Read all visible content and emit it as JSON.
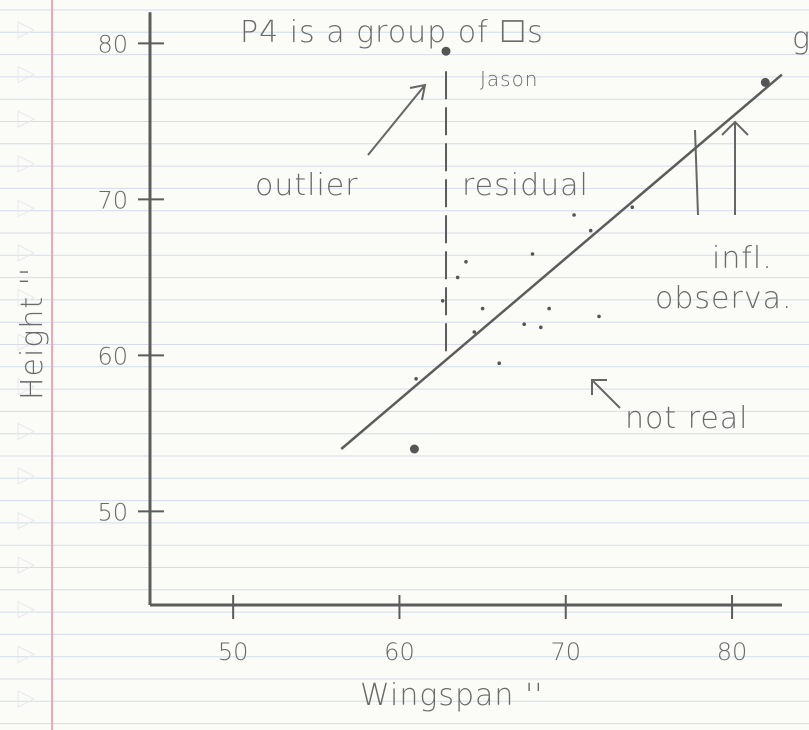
{
  "chart_data": {
    "type": "scatter",
    "title": "P4 is a group of ☐s",
    "x_label": "Wingspan ''",
    "y_label": "Height ''",
    "xlim": [
      45,
      83
    ],
    "ylim": [
      44,
      82
    ],
    "xticks": [
      50,
      60,
      70,
      80
    ],
    "yticks": [
      50,
      60,
      70,
      80
    ],
    "x": [
      62.8,
      60.9,
      82,
      62.6,
      63.5,
      64.5,
      66,
      65,
      67.5,
      68.5,
      69,
      70.5,
      71.5,
      74,
      64,
      68,
      72,
      61
    ],
    "y": [
      79.5,
      54,
      77.5,
      63.5,
      65,
      61.5,
      59.5,
      63,
      62,
      61.8,
      63,
      69,
      68,
      69.5,
      66,
      66.5,
      62.5,
      58.5
    ],
    "fit_line": {
      "x": [
        56.5,
        83
      ],
      "y": [
        54,
        78
      ]
    },
    "annotations": [
      "Jason",
      "outlier",
      "residual",
      "infl.",
      "observa.",
      "not real",
      "g"
    ]
  }
}
